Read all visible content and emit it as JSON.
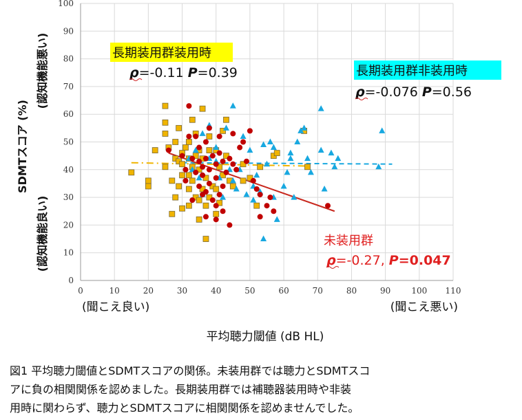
{
  "chart_data": {
    "type": "scatter",
    "xlabel": "平均聴力閾値 (dB HL)",
    "xlabel_left": "(聞こえ良い)",
    "xlabel_right": "(聞こえ悪い)",
    "ylabel": "SDMTスコア (%)",
    "ylabel_top": "(認知機能悪い)",
    "ylabel_bottom": "(認知機能良い)",
    "xlim": [
      0,
      110
    ],
    "ylim": [
      0,
      100
    ],
    "x_ticks": [
      0,
      10,
      20,
      30,
      40,
      50,
      60,
      70,
      80,
      90,
      100,
      110
    ],
    "y_ticks": [
      0,
      10,
      20,
      30,
      40,
      50,
      60,
      70,
      80,
      90,
      100
    ],
    "grid": true,
    "series": [
      {
        "name": "長期装用群装用時",
        "marker": "square",
        "color": "#f0b400",
        "points": [
          [
            15,
            39
          ],
          [
            20,
            36
          ],
          [
            20,
            34
          ],
          [
            22,
            47
          ],
          [
            25,
            63
          ],
          [
            25,
            57
          ],
          [
            25,
            53
          ],
          [
            25,
            41
          ],
          [
            26,
            48
          ],
          [
            27,
            24
          ],
          [
            27,
            36
          ],
          [
            28,
            30
          ],
          [
            28,
            44
          ],
          [
            28,
            50
          ],
          [
            29,
            34
          ],
          [
            29,
            43
          ],
          [
            29,
            55
          ],
          [
            30,
            26
          ],
          [
            30,
            38
          ],
          [
            30,
            42
          ],
          [
            30,
            46
          ],
          [
            31,
            48
          ],
          [
            32,
            27
          ],
          [
            32,
            33
          ],
          [
            32,
            38
          ],
          [
            32,
            44
          ],
          [
            32,
            50
          ],
          [
            33,
            58
          ],
          [
            33,
            41
          ],
          [
            33,
            36
          ],
          [
            34,
            30
          ],
          [
            34,
            45
          ],
          [
            34,
            53
          ],
          [
            35,
            22
          ],
          [
            35,
            29
          ],
          [
            35,
            40
          ],
          [
            35,
            47
          ],
          [
            36,
            62
          ],
          [
            36,
            33
          ],
          [
            36,
            44
          ],
          [
            37,
            15
          ],
          [
            37,
            27
          ],
          [
            37,
            37
          ],
          [
            38,
            30
          ],
          [
            38,
            47
          ],
          [
            38,
            52
          ],
          [
            39,
            34
          ],
          [
            40,
            24
          ],
          [
            40,
            33
          ],
          [
            40,
            47
          ],
          [
            41,
            41
          ],
          [
            41,
            28
          ],
          [
            42,
            38
          ],
          [
            42,
            54
          ],
          [
            43,
            58
          ],
          [
            43,
            45
          ],
          [
            44,
            36
          ],
          [
            45,
            34
          ],
          [
            48,
            36
          ],
          [
            48,
            42
          ],
          [
            50,
            37
          ],
          [
            52,
            27
          ],
          [
            53,
            41
          ],
          [
            57,
            45
          ],
          [
            58,
            46
          ],
          [
            66,
            54
          ],
          [
            67,
            41
          ]
        ]
      },
      {
        "name": "長期装用群非装用時",
        "marker": "triangle",
        "color": "#18a8e0",
        "points": [
          [
            32,
            44
          ],
          [
            33,
            40
          ],
          [
            34,
            47
          ],
          [
            35,
            37
          ],
          [
            36,
            31
          ],
          [
            36,
            53
          ],
          [
            38,
            44
          ],
          [
            38,
            56
          ],
          [
            40,
            48
          ],
          [
            40,
            43
          ],
          [
            41,
            37
          ],
          [
            42,
            30
          ],
          [
            43,
            55
          ],
          [
            44,
            40
          ],
          [
            45,
            63
          ],
          [
            45,
            36
          ],
          [
            46,
            33
          ],
          [
            47,
            40
          ],
          [
            48,
            52
          ],
          [
            49,
            31
          ],
          [
            50,
            47
          ],
          [
            51,
            34
          ],
          [
            51,
            29
          ],
          [
            52,
            38
          ],
          [
            53,
            32
          ],
          [
            54,
            15
          ],
          [
            54,
            49
          ],
          [
            55,
            42
          ],
          [
            56,
            50
          ],
          [
            57,
            48
          ],
          [
            57,
            30
          ],
          [
            58,
            22
          ],
          [
            60,
            34
          ],
          [
            61,
            39
          ],
          [
            62,
            44
          ],
          [
            62,
            46
          ],
          [
            63,
            30
          ],
          [
            64,
            50
          ],
          [
            65,
            54
          ],
          [
            66,
            55
          ],
          [
            67,
            44
          ],
          [
            68,
            39
          ],
          [
            71,
            47
          ],
          [
            71,
            62
          ],
          [
            72,
            33
          ],
          [
            74,
            46
          ],
          [
            75,
            41
          ],
          [
            76,
            44
          ],
          [
            88,
            41
          ],
          [
            89,
            54
          ]
        ]
      },
      {
        "name": "未装用群",
        "marker": "circle",
        "color": "#c00000",
        "points": [
          [
            26,
            47
          ],
          [
            30,
            45
          ],
          [
            31,
            36
          ],
          [
            31,
            40
          ],
          [
            32,
            52
          ],
          [
            32,
            63
          ],
          [
            33,
            44
          ],
          [
            33,
            29
          ],
          [
            34,
            39
          ],
          [
            34,
            52
          ],
          [
            35,
            43
          ],
          [
            35,
            48
          ],
          [
            35,
            34
          ],
          [
            36,
            41
          ],
          [
            36,
            38
          ],
          [
            36,
            31
          ],
          [
            37,
            50
          ],
          [
            37,
            44
          ],
          [
            37,
            32
          ],
          [
            37,
            23
          ],
          [
            38,
            35
          ],
          [
            38,
            55
          ],
          [
            38,
            40
          ],
          [
            39,
            45
          ],
          [
            39,
            29
          ],
          [
            40,
            42
          ],
          [
            40,
            37
          ],
          [
            40,
            27
          ],
          [
            40,
            22
          ],
          [
            41,
            31
          ],
          [
            41,
            46
          ],
          [
            41,
            52
          ],
          [
            42,
            43
          ],
          [
            42,
            34
          ],
          [
            42,
            25
          ],
          [
            43,
            39
          ],
          [
            44,
            44
          ],
          [
            44,
            20
          ],
          [
            45,
            42
          ],
          [
            45,
            53
          ],
          [
            46,
            40
          ],
          [
            47,
            48
          ],
          [
            48,
            50
          ],
          [
            49,
            43
          ],
          [
            50,
            54
          ],
          [
            51,
            36
          ],
          [
            52,
            33
          ],
          [
            53,
            23
          ],
          [
            53,
            31
          ],
          [
            55,
            27
          ],
          [
            56,
            30
          ],
          [
            57,
            25
          ],
          [
            73,
            27
          ]
        ]
      }
    ],
    "trendlines": [
      {
        "series": "長期装用群装用時",
        "x": [
          15,
          67
        ],
        "y": [
          42.5,
          41.3
        ],
        "color": "#f0b400",
        "style": "dashdot"
      },
      {
        "series": "長期装用群非装用時",
        "x": [
          30,
          92
        ],
        "y": [
          42.5,
          42
        ],
        "color": "#18a8e0",
        "style": "dashed"
      },
      {
        "series": "未装用群",
        "x": [
          26,
          75
        ],
        "y": [
          46,
          25
        ],
        "color": "#c8281e",
        "style": "solid"
      }
    ],
    "annotations": [
      {
        "label": "長期装用群装用時",
        "stat": "=-0.11 ",
        "p": "=0.39",
        "highlight": "#ffff00"
      },
      {
        "label": "長期装用群非装用時",
        "stat": "=-0.076 ",
        "p": "=0.56",
        "highlight": "#00ffff"
      },
      {
        "label": "未装用群",
        "stat": "=-0.27, ",
        "p": "=0.047",
        "color": "#e02020"
      }
    ]
  },
  "caption": {
    "line1": "図1 平均聴力閾値とSDMTスコアの関係。未装用群では聴力とSDMTスコ",
    "line2": "アに負の相関関係を認めました。長期装用群では補聴器装用時や非装",
    "line3": "用時に関わらず、聴力とSDMTスコアに相関関係を認めませんでした。"
  },
  "symbols": {
    "rho": "ρ",
    "p": "P"
  }
}
